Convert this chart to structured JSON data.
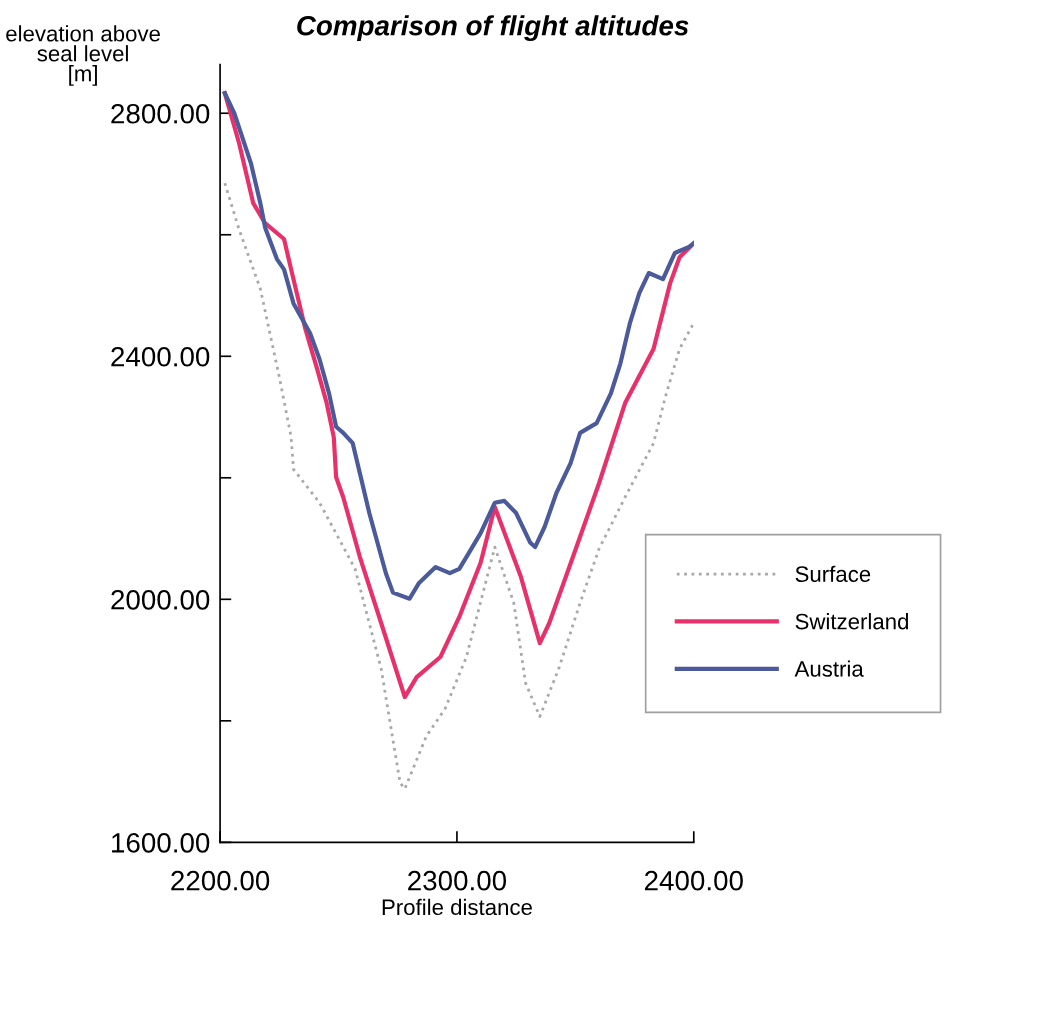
{
  "chart_data": {
    "type": "line",
    "title": "Comparison of flight altitudes",
    "xlabel": "Profile distance",
    "ylabel": "elevation above\nseal level\n[m]",
    "xlim": [
      2200,
      2400
    ],
    "ylim": [
      1600,
      2880
    ],
    "xticks": [
      {
        "value": 2200,
        "label": "2200.00"
      },
      {
        "value": 2300,
        "label": "2300.00"
      },
      {
        "value": 2400,
        "label": "2400.00"
      }
    ],
    "yticks": [
      {
        "value": 1600,
        "label": "1600.00"
      },
      {
        "value": 1800,
        "label": null
      },
      {
        "value": 2000,
        "label": "2000.00"
      },
      {
        "value": 2200,
        "label": null
      },
      {
        "value": 2400,
        "label": "2400.00"
      },
      {
        "value": 2600,
        "label": null
      },
      {
        "value": 2800,
        "label": "2800.00"
      }
    ],
    "grid": false,
    "legend": "right",
    "marker": "none",
    "series": [
      {
        "name": "Surface",
        "color": "#a8a8a8",
        "line_style": "dotted",
        "x": [
          2202,
          2208,
          2217,
          2225,
          2230,
          2231,
          2242,
          2257,
          2268,
          2276,
          2278,
          2287,
          2295,
          2304,
          2316,
          2324,
          2329,
          2335,
          2343,
          2352,
          2360,
          2371,
          2383,
          2388,
          2394,
          2400
        ],
        "values": [
          2685,
          2609,
          2511,
          2366,
          2267,
          2214,
          2159,
          2050,
          1886,
          1698,
          1688,
          1774,
          1820,
          1905,
          2086,
          1994,
          1862,
          1807,
          1886,
          1994,
          2083,
          2168,
          2257,
          2333,
          2412,
          2455
        ]
      },
      {
        "name": "Switzerland",
        "color": "#e8306a",
        "line_style": "solid",
        "x": [
          2202,
          2208,
          2214,
          2219,
          2227,
          2230,
          2236,
          2241,
          2245,
          2248,
          2249,
          2252,
          2259,
          2268,
          2278,
          2283,
          2293,
          2301,
          2310,
          2316,
          2327,
          2335,
          2339,
          2349,
          2360,
          2371,
          2383,
          2390,
          2394,
          2400
        ],
        "values": [
          2833,
          2751,
          2652,
          2619,
          2593,
          2543,
          2445,
          2379,
          2323,
          2267,
          2201,
          2168,
          2070,
          1961,
          1839,
          1872,
          1905,
          1971,
          2060,
          2152,
          2037,
          1928,
          1961,
          2070,
          2191,
          2323,
          2412,
          2520,
          2563,
          2586
        ]
      },
      {
        "name": "Austria",
        "color": "#4a5a9a",
        "line_style": "solid",
        "x": [
          2202,
          2206,
          2213,
          2217,
          2219,
          2224,
          2227,
          2231,
          2238,
          2242,
          2246,
          2249,
          2252,
          2256,
          2259,
          2263,
          2270,
          2273,
          2280,
          2284,
          2291,
          2297,
          2301,
          2305,
          2310,
          2316,
          2320,
          2325,
          2331,
          2333,
          2337,
          2342,
          2348,
          2352,
          2359,
          2365,
          2369,
          2373,
          2377,
          2381,
          2387,
          2392,
          2398,
          2400
        ],
        "values": [
          2833,
          2800,
          2718,
          2652,
          2612,
          2560,
          2543,
          2487,
          2438,
          2395,
          2339,
          2284,
          2274,
          2257,
          2208,
          2142,
          2043,
          2011,
          2001,
          2027,
          2053,
          2043,
          2050,
          2076,
          2109,
          2159,
          2162,
          2142,
          2093,
          2086,
          2119,
          2175,
          2224,
          2274,
          2290,
          2339,
          2388,
          2454,
          2504,
          2537,
          2527,
          2570,
          2580,
          2586
        ]
      }
    ]
  }
}
